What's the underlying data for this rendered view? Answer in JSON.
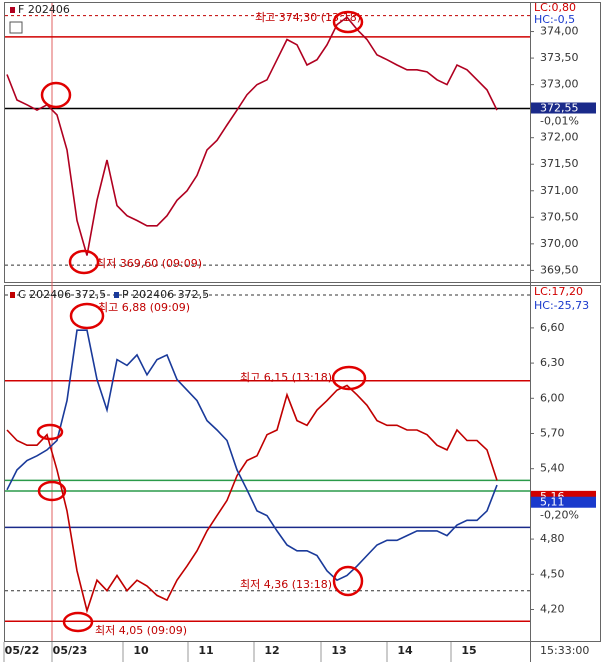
{
  "chart_data": [
    {
      "type": "line",
      "series": [
        {
          "name": "F 202406",
          "color": "#b00020",
          "values": [
            373.19,
            372.71,
            372.62,
            372.52,
            372.62,
            372.43,
            371.77,
            370.44,
            369.78,
            370.82,
            371.58,
            370.72,
            370.53,
            370.44,
            370.34,
            370.34,
            370.53,
            370.82,
            371.0,
            371.29,
            371.77,
            371.95,
            372.24,
            372.52,
            372.81,
            373.0,
            373.09,
            373.47,
            373.85,
            373.75,
            373.37,
            373.47,
            373.75,
            374.13,
            374.27,
            374.04,
            373.85,
            373.56,
            373.47,
            373.37,
            373.28,
            373.28,
            373.24,
            373.09,
            373.0,
            373.37,
            373.28,
            373.09,
            372.9,
            372.52
          ]
        }
      ],
      "info": [
        "LC:0,80",
        "HC:-0,5"
      ],
      "annotations": [
        "최고 374,30 (13:18)",
        "최저 369,60 (09:09)"
      ],
      "price_tags": [
        {
          "value": 372.55,
          "label": "372,55",
          "color": "#1a2a8a"
        }
      ],
      "change": "-0,01%",
      "hlines": [
        {
          "value": 374.3,
          "color": "#c00000",
          "style": "dashed"
        },
        {
          "value": 373.9,
          "color": "#d00000",
          "style": "solid"
        },
        {
          "value": 372.55,
          "color": "#000000",
          "style": "solid"
        },
        {
          "value": 369.6,
          "color": "#333333",
          "style": "dashed"
        }
      ],
      "ylim": [
        369.3,
        374.5
      ],
      "yticks": [
        {
          "value": 374.0,
          "label": "374,00"
        },
        {
          "value": 373.5,
          "label": "373,50"
        },
        {
          "value": 373.0,
          "label": "373,00"
        },
        {
          "value": 372.0,
          "label": "372,00"
        },
        {
          "value": 371.5,
          "label": "371,50"
        },
        {
          "value": 371.0,
          "label": "371,00"
        },
        {
          "value": 370.5,
          "label": "370,50"
        },
        {
          "value": 370.0,
          "label": "370,00"
        },
        {
          "value": 369.5,
          "label": "369,50"
        }
      ],
      "xlim": [
        -0.2,
        52.1
      ]
    },
    {
      "type": "line",
      "series": [
        {
          "name": "C 202406 372,5",
          "color": "#c00000",
          "values": [
            5.73,
            5.64,
            5.6,
            5.6,
            5.69,
            5.39,
            5.04,
            4.53,
            4.19,
            4.45,
            4.36,
            4.49,
            4.36,
            4.45,
            4.4,
            4.32,
            4.28,
            4.45,
            4.57,
            4.7,
            4.87,
            5.0,
            5.13,
            5.34,
            5.47,
            5.51,
            5.69,
            5.73,
            6.03,
            5.81,
            5.77,
            5.9,
            5.98,
            6.07,
            6.11,
            6.03,
            5.94,
            5.81,
            5.77,
            5.77,
            5.73,
            5.73,
            5.69,
            5.6,
            5.56,
            5.73,
            5.64,
            5.64,
            5.56,
            5.3
          ]
        },
        {
          "name": "P 202406 372,5",
          "color": "#1a3a9a",
          "values": [
            5.22,
            5.39,
            5.47,
            5.51,
            5.56,
            5.64,
            5.98,
            6.58,
            6.58,
            6.16,
            5.9,
            6.33,
            6.28,
            6.37,
            6.2,
            6.33,
            6.37,
            6.16,
            6.07,
            5.98,
            5.81,
            5.73,
            5.64,
            5.39,
            5.22,
            5.04,
            5.0,
            4.87,
            4.75,
            4.7,
            4.7,
            4.66,
            4.53,
            4.45,
            4.49,
            4.57,
            4.66,
            4.75,
            4.79,
            4.79,
            4.83,
            4.87,
            4.87,
            4.87,
            4.83,
            4.92,
            4.96,
            4.96,
            5.04,
            5.26
          ]
        }
      ],
      "info": [
        "LC:17,20",
        "HC:-25,73"
      ],
      "annotations": [
        "최고 6,88 (09:09)",
        "최고 6,15 (13:18)",
        "최저 4,36 (13:18)",
        "최저 4,05 (09:09)"
      ],
      "price_tags": [
        {
          "value": 5.16,
          "label": "5,16",
          "color": "#d00000"
        },
        {
          "value": 5.11,
          "label": "5,11",
          "color": "#1a3acc"
        }
      ],
      "change": "-0,20%",
      "hlines": [
        {
          "value": 6.88,
          "color": "#333333",
          "style": "dashed"
        },
        {
          "value": 6.15,
          "color": "#d00000",
          "style": "solid"
        },
        {
          "value": 5.3,
          "color": "#2a9a4a",
          "style": "solid"
        },
        {
          "value": 5.21,
          "color": "#2a9a4a",
          "style": "solid"
        },
        {
          "value": 4.9,
          "color": "#1a2a8a",
          "style": "solid"
        },
        {
          "value": 4.36,
          "color": "#333333",
          "style": "dashed"
        },
        {
          "value": 4.1,
          "color": "#d00000",
          "style": "solid"
        }
      ],
      "ylim": [
        3.94,
        6.94
      ],
      "yticks": [
        {
          "value": 6.6,
          "label": "6,60"
        },
        {
          "value": 6.3,
          "label": "6,30"
        },
        {
          "value": 6.0,
          "label": "6,00"
        },
        {
          "value": 5.7,
          "label": "5,70"
        },
        {
          "value": 5.4,
          "label": "5,40"
        },
        {
          "value": 4.8,
          "label": "4,80"
        },
        {
          "value": 4.5,
          "label": "4,50"
        },
        {
          "value": 4.2,
          "label": "4,20"
        }
      ],
      "xlim": [
        -0.2,
        52.1
      ],
      "xticks": [
        {
          "value": 1.5,
          "label": "05/22"
        },
        {
          "value": 6.3,
          "label": "05/23"
        },
        {
          "value": 13.4,
          "label": "10"
        },
        {
          "value": 19.9,
          "label": "11"
        },
        {
          "value": 26.5,
          "label": "12"
        },
        {
          "value": 33.2,
          "label": "13"
        },
        {
          "value": 39.8,
          "label": "14"
        },
        {
          "value": 46.2,
          "label": "15"
        }
      ],
      "time": "15:33:00"
    }
  ]
}
